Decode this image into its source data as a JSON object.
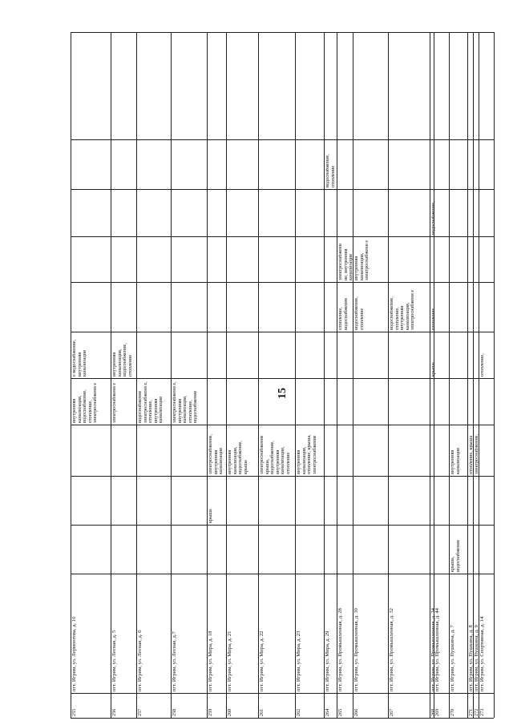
{
  "page": {
    "number": "15"
  },
  "rows": [
    {
      "num": "255",
      "address": "пгт. Игрим, ул. Лермонтова, д. 10",
      "col2": "внутренняя канализация, водоснабжение, отопление, электроснабжени е",
      "col3": "е водоснабжение, внутренняя канализация"
    },
    {
      "num": "256",
      "address": "пгт. Игрим, ул. Лесная, д. 5",
      "col2": "электроснабжени е",
      "col3": "внутренняя канализация, водоснабжение, отопление"
    },
    {
      "num": "257",
      "address": "пгт. Игрим, ул. Лесная, д. 6",
      "col2": "водоснабжение электроснабжени е, отопление, внутренняя канализация"
    },
    {
      "num": "258",
      "address": "пгт. Игрим, ул. Лесная, д.7",
      "col2": "электроснабжени е, внутренняя канализация, отопление, водоснабжение"
    },
    {
      "num": "259",
      "address": "пгт. Игрим, ул. Мира, д. 18",
      "roof": "крыша",
      "col1": "электроснабжение, внутренняя канализация"
    },
    {
      "num": "260",
      "address": "пгт. Игрим, ул. Мира, д. 21",
      "col1": "внутренняя канализация, водоснабжение, крыша"
    },
    {
      "num": "261",
      "address": "пгт. Игрим, ул. Мира, д. 22",
      "col1": "электроснабжение крыша, водоснабжение, внутренняя канализация, отопление"
    },
    {
      "num": "262",
      "address": "пгт. Игрим, ул. Мира, д. 23",
      "col1": "внутренняя канализация, отопление, крыша, электроснабжение"
    },
    {
      "num": "264",
      "address": "пгт. Игрим, ул. Мира, д. 29",
      "col6": "водоснабжение, отопление"
    },
    {
      "num": "265",
      "address": "пгт. Игрим, ул. Промышленная, д. 28",
      "col4": "отопление, водоснабжение",
      "col5": "электроснабжени ие, внутренняя канализация"
    },
    {
      "num": "266",
      "address": "пгт. Игрим, ул. Промышленная, д. 30",
      "col4": "водоснабжение, отопление",
      "col5": "внутренняя канализация, электроснабжени е"
    },
    {
      "num": "267",
      "address": "пгт. Игрим, ул. Промышленная, д. 32",
      "col4": "водоснабжение, отопление, внутренняя канализация, электроснабжени е"
    },
    {
      "num": "268",
      "address": "пгт. Игрим, ул. Промышленная, д. 34",
      "col3": "крыша",
      "col4": "отопление",
      "col5b": "водоснабжение, отопление"
    },
    {
      "num": "269",
      "address": "пгт. Игрим, ул. Промышленная, д. 44"
    },
    {
      "num": "270",
      "address": "пгт. Игрим, ул. Пушкина, д. 7",
      "col0": "крыша, водоснабжение",
      "col1": "внутренняя канализация"
    },
    {
      "num": "271",
      "address": "пгт. Игрим, ул. Пушкина, д. 8",
      "col1": "отопление, крыша"
    },
    {
      "num": "272",
      "address": "пгт. Игрим, ул. Пушкина, д. 9",
      "col1": "электроснабжение, крыша"
    },
    {
      "num": "273",
      "address": "пгт. Игрим, ул. Спортивная, д. 14",
      "col3": "отопление,"
    }
  ]
}
